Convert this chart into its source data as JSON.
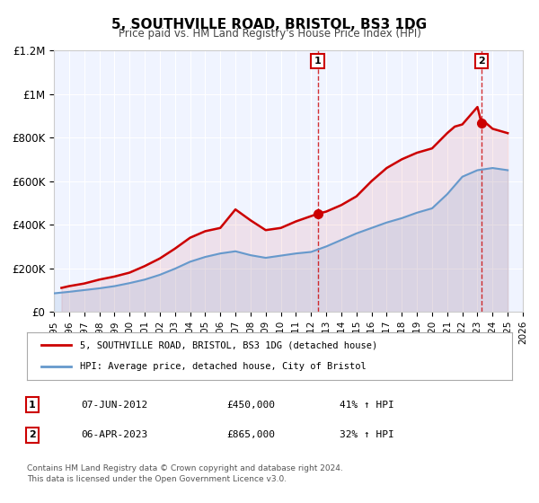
{
  "title": "5, SOUTHVILLE ROAD, BRISTOL, BS3 1DG",
  "subtitle": "Price paid vs. HM Land Registry's House Price Index (HPI)",
  "legend_label_red": "5, SOUTHVILLE ROAD, BRISTOL, BS3 1DG (detached house)",
  "legend_label_blue": "HPI: Average price, detached house, City of Bristol",
  "footer1": "Contains HM Land Registry data © Crown copyright and database right 2024.",
  "footer2": "This data is licensed under the Open Government Licence v3.0.",
  "transaction1_label": "1",
  "transaction1_date": "07-JUN-2012",
  "transaction1_price": "£450,000",
  "transaction1_hpi": "41% ↑ HPI",
  "transaction2_label": "2",
  "transaction2_date": "06-APR-2023",
  "transaction2_price": "£865,000",
  "transaction2_hpi": "32% ↑ HPI",
  "marker1_x": 2012.44,
  "marker1_y": 450000,
  "marker2_x": 2023.27,
  "marker2_y": 865000,
  "vline1_x": 2012.44,
  "vline2_x": 2023.27,
  "xlim": [
    1995,
    2026
  ],
  "ylim": [
    0,
    1200000
  ],
  "yticks": [
    0,
    200000,
    400000,
    600000,
    800000,
    1000000,
    1200000
  ],
  "ytick_labels": [
    "£0",
    "£200K",
    "£400K",
    "£600K",
    "£800K",
    "£1M",
    "£1.2M"
  ],
  "background_color": "#f0f4ff",
  "plot_bg_color": "#f0f4ff",
  "red_color": "#cc0000",
  "blue_color": "#6699cc",
  "grid_color": "#ffffff",
  "hpi_years": [
    1995,
    1996,
    1997,
    1998,
    1999,
    2000,
    2001,
    2002,
    2003,
    2004,
    2005,
    2006,
    2007,
    2008,
    2009,
    2010,
    2011,
    2012,
    2013,
    2014,
    2015,
    2016,
    2017,
    2018,
    2019,
    2020,
    2021,
    2022,
    2023,
    2024,
    2025
  ],
  "hpi_values": [
    85000,
    92000,
    100000,
    108000,
    118000,
    132000,
    148000,
    170000,
    198000,
    230000,
    252000,
    268000,
    278000,
    260000,
    248000,
    258000,
    268000,
    275000,
    300000,
    330000,
    360000,
    385000,
    410000,
    430000,
    455000,
    475000,
    540000,
    620000,
    650000,
    660000,
    650000
  ],
  "price_years": [
    1995.5,
    1996,
    1997,
    1998,
    1999,
    2000,
    2001,
    2002,
    2003,
    2004,
    2005,
    2006,
    2007,
    2008,
    2009,
    2010,
    2011,
    2012.44,
    2013,
    2014,
    2015,
    2016,
    2017,
    2018,
    2019,
    2020,
    2021,
    2021.5,
    2022,
    2022.5,
    2023.0,
    2023.27,
    2023.5,
    2024,
    2025
  ],
  "price_values": [
    110000,
    118000,
    130000,
    148000,
    162000,
    180000,
    210000,
    245000,
    290000,
    340000,
    370000,
    385000,
    470000,
    420000,
    375000,
    385000,
    415000,
    450000,
    460000,
    490000,
    530000,
    600000,
    660000,
    700000,
    730000,
    750000,
    820000,
    850000,
    860000,
    900000,
    940000,
    865000,
    870000,
    840000,
    820000
  ]
}
